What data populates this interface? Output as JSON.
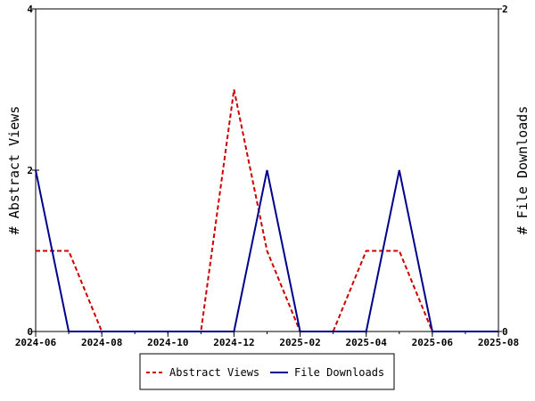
{
  "chart_data": {
    "type": "line",
    "x_ticks": [
      "2024-06",
      "2024-08",
      "2024-10",
      "2024-12",
      "2025-02",
      "2025-04",
      "2025-06",
      "2025-08"
    ],
    "x": [
      "2024-06",
      "2024-07",
      "2024-08",
      "2024-09",
      "2024-10",
      "2024-11",
      "2024-12",
      "2025-01",
      "2025-02",
      "2025-03",
      "2025-04",
      "2025-05",
      "2025-06",
      "2025-07",
      "2025-08"
    ],
    "xlim": [
      "2024-06",
      "2025-08"
    ],
    "ylabel_left": "# Abstract Views",
    "ylabel_right": "# File Downloads",
    "ylim_left": [
      0,
      4
    ],
    "ylim_right": [
      0,
      2
    ],
    "yticks_left": [
      "0",
      "2",
      "4"
    ],
    "yticks_right": [
      "0",
      "2"
    ],
    "grid": false,
    "legend_position": "bottom",
    "series": [
      {
        "name": "Abstract Views",
        "axis": "left",
        "color": "#cc0000",
        "dash": "dashed",
        "values": [
          1,
          1,
          0,
          0,
          0,
          0,
          3,
          1,
          0,
          0,
          1,
          1,
          0,
          0,
          0
        ]
      },
      {
        "name": "File Downloads",
        "axis": "right",
        "color": "#00008b",
        "dash": "solid",
        "values": [
          1,
          0,
          0,
          0,
          0,
          0,
          0,
          1,
          0,
          0,
          0,
          1,
          0,
          0,
          0
        ]
      }
    ]
  }
}
